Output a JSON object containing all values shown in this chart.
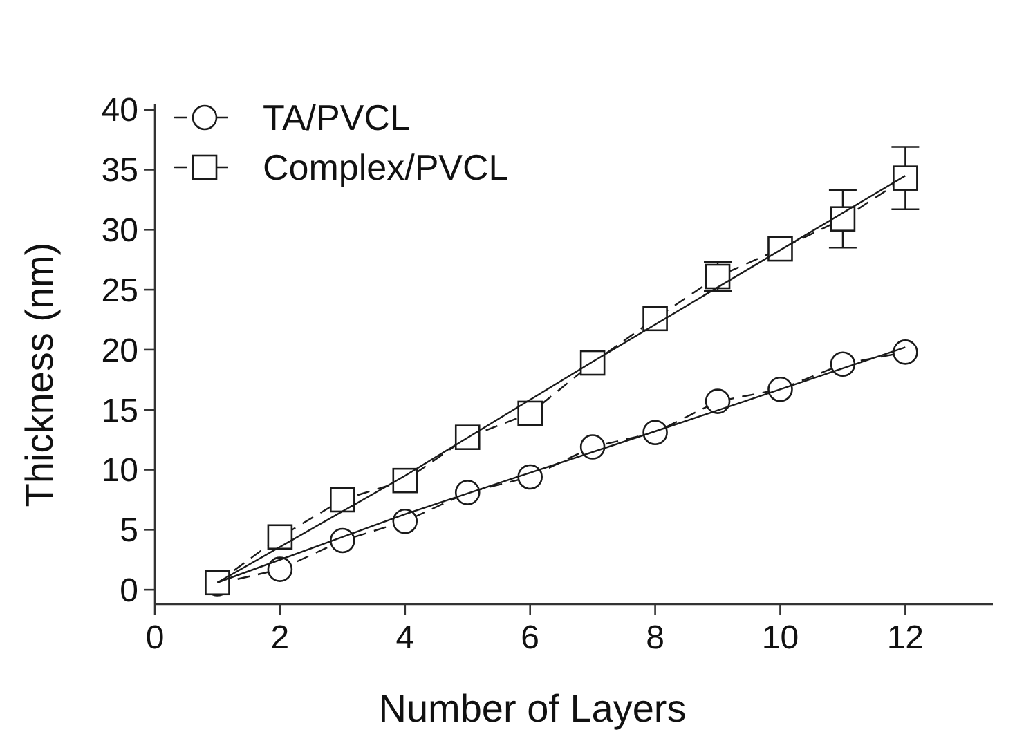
{
  "chart_data": {
    "type": "line",
    "xlabel": "Number of Layers",
    "ylabel": "Thickness (nm)",
    "xlim": [
      0,
      13.4
    ],
    "ylim": [
      -1.2,
      40.5
    ],
    "xticks": [
      0,
      2,
      4,
      6,
      8,
      10,
      12
    ],
    "yticks": [
      0,
      5,
      10,
      15,
      20,
      25,
      30,
      35,
      40
    ],
    "grid": false,
    "legend": "top left",
    "series": [
      {
        "name": "TA/PVCL",
        "color": "#1a1a1a",
        "marker": "circle",
        "line_style": "dashed",
        "x": [
          1,
          2,
          3,
          4,
          5,
          6,
          7,
          8,
          9,
          10,
          11,
          12
        ],
        "values": [
          0.5,
          1.7,
          4.1,
          5.7,
          8.1,
          9.4,
          11.9,
          13.1,
          15.7,
          16.7,
          18.8,
          19.8
        ]
      },
      {
        "name": "Complex/PVCL",
        "color": "#1a1a1a",
        "marker": "square",
        "line_style": "dashed",
        "x": [
          1,
          2,
          3,
          4,
          5,
          6,
          7,
          8,
          9,
          10,
          11,
          12
        ],
        "values": [
          0.6,
          4.4,
          7.5,
          9.1,
          12.7,
          14.7,
          18.9,
          22.6,
          26.1,
          28.4,
          30.9,
          34.3
        ],
        "errors": [
          null,
          null,
          null,
          null,
          null,
          null,
          null,
          null,
          1.2,
          null,
          2.4,
          2.6
        ]
      },
      {
        "type": "line",
        "color": "#1a1a1a",
        "marker": "none",
        "line_style": "solid",
        "x": [
          1,
          4,
          8,
          12
        ],
        "values": [
          0.6,
          6.3,
          13.2,
          20.2
        ]
      },
      {
        "type": "line",
        "color": "#1a1a1a",
        "marker": "none",
        "line_style": "solid",
        "x": [
          1,
          4,
          7,
          12
        ],
        "values": [
          0.6,
          9.5,
          19,
          34.5
        ]
      }
    ]
  }
}
